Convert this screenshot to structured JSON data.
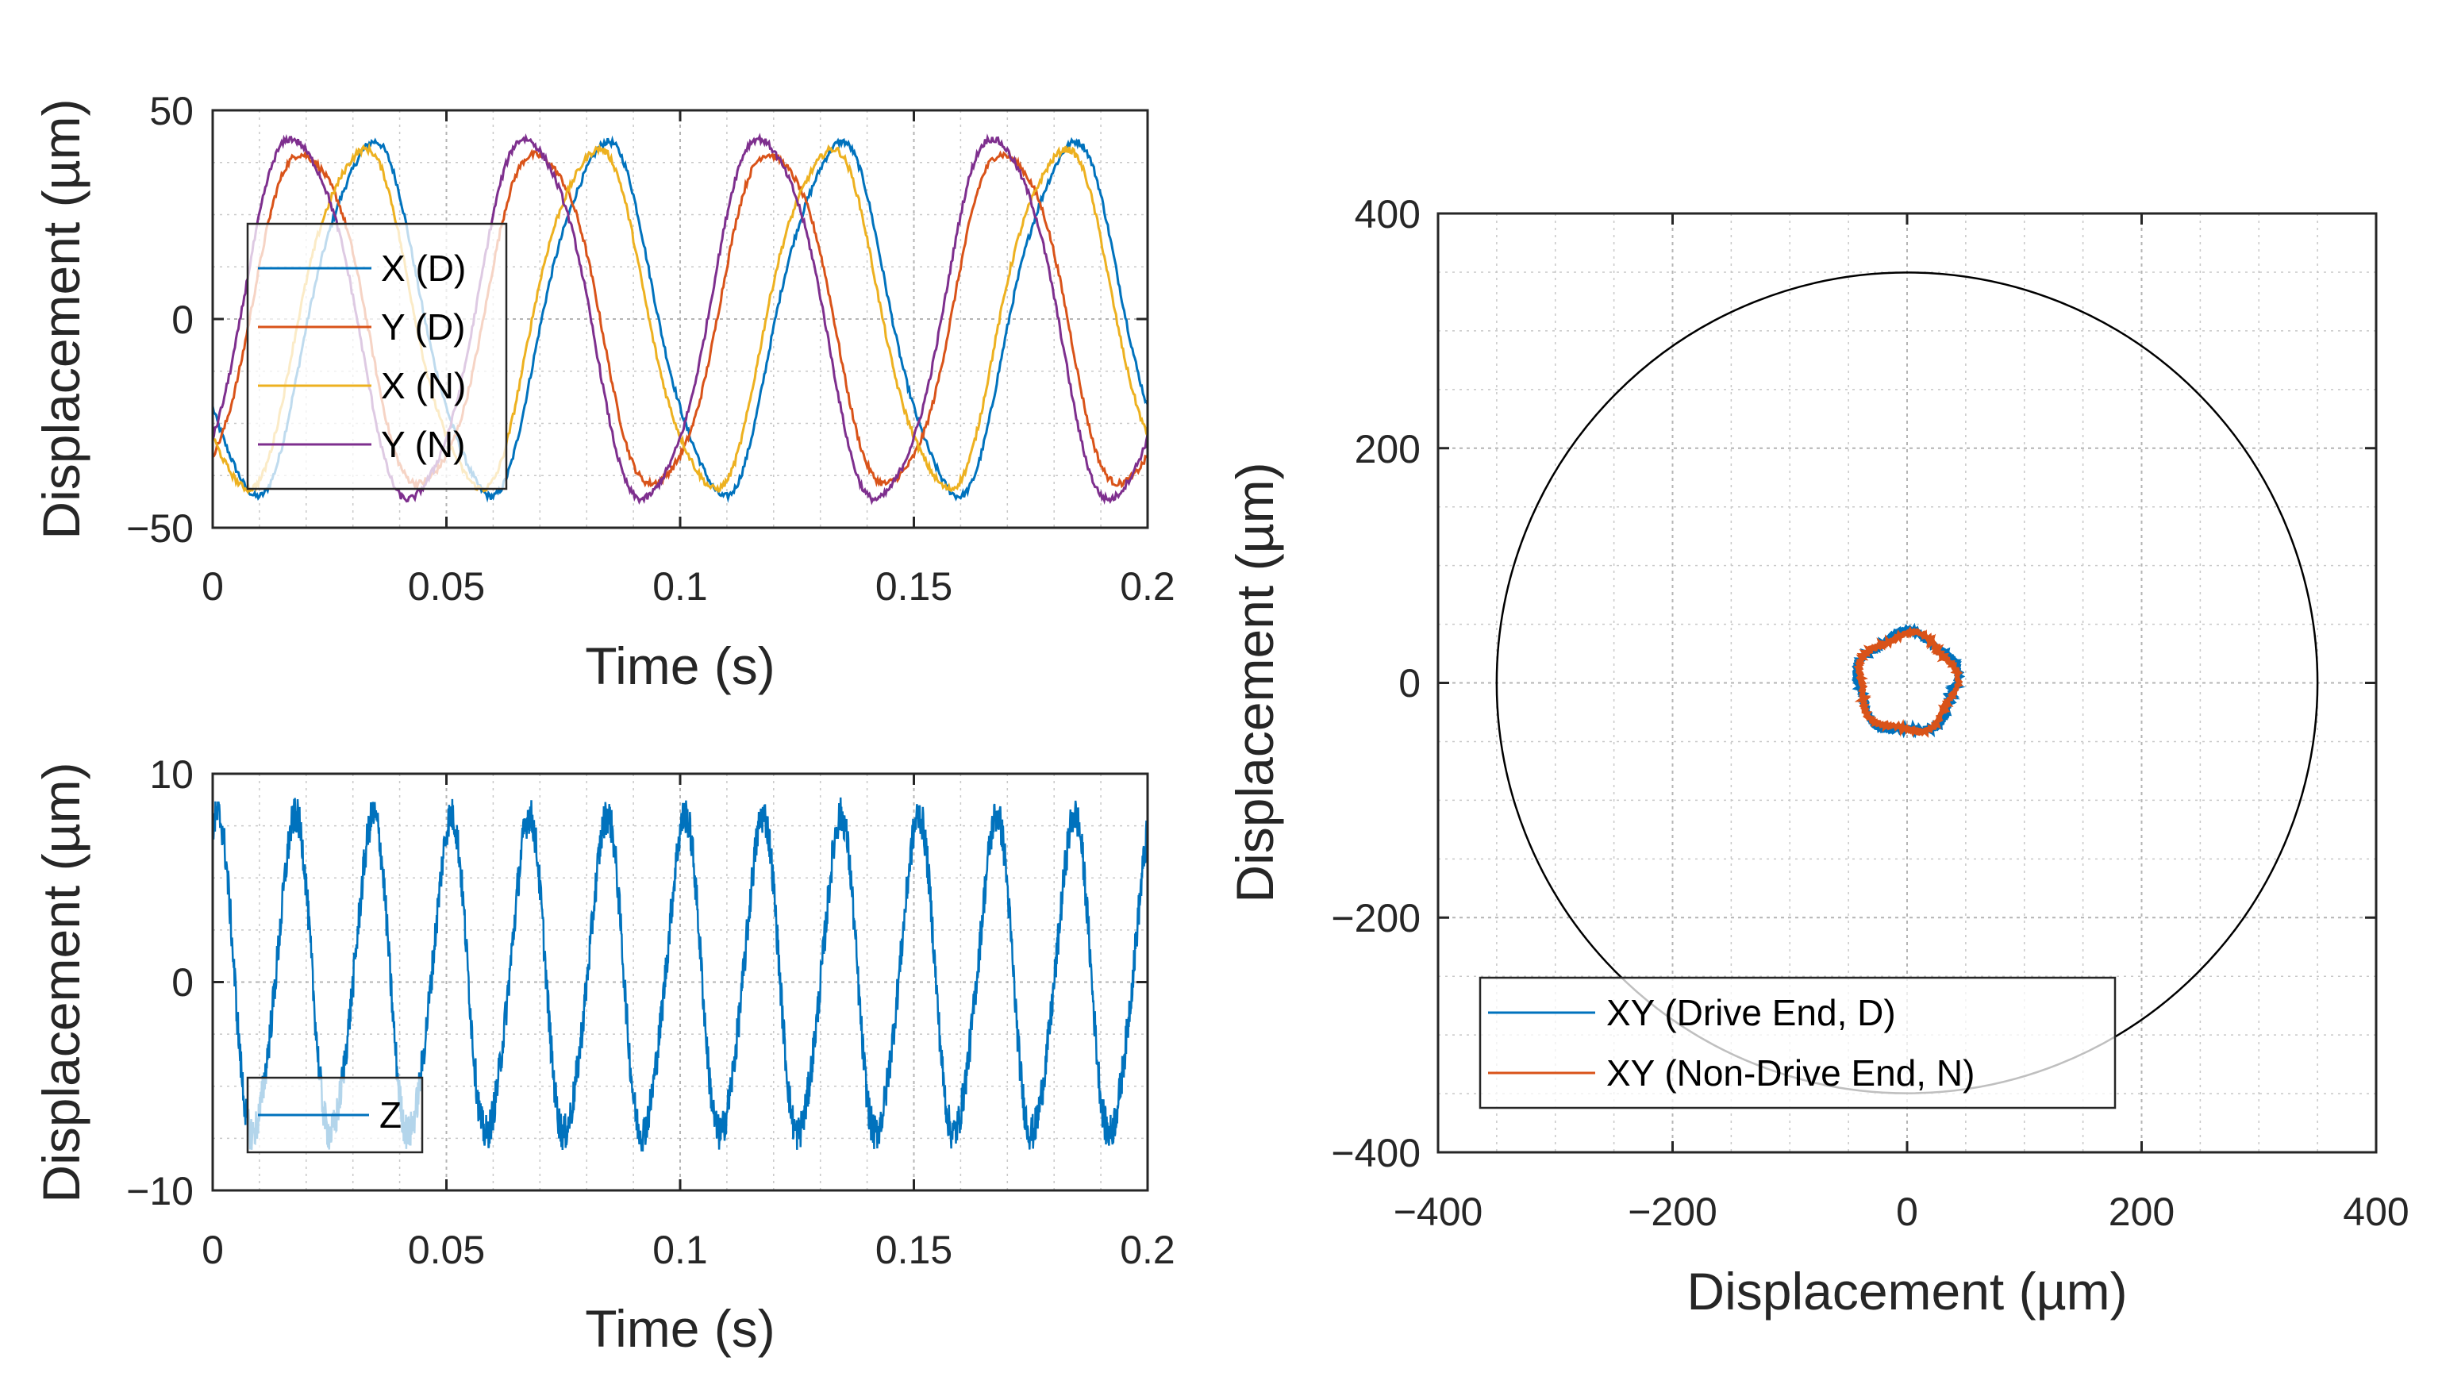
{
  "colors": {
    "x_d": "#0072BD",
    "y_d": "#D95319",
    "x_n": "#EDB120",
    "y_n": "#7E2F8E",
    "z": "#0072BD",
    "boundary": "#000000",
    "grid": "#c8c8c8",
    "axis": "#262626"
  },
  "chart_data": [
    {
      "id": "xy-time",
      "type": "line",
      "xlabel": "Time (s)",
      "ylabel": "Displacement (µm)",
      "xlim": [
        0,
        0.2
      ],
      "ylim": [
        -50,
        50
      ],
      "xticks": [
        0,
        0.05,
        0.1,
        0.15,
        0.2
      ],
      "xtick_labels": [
        "0",
        "0.05",
        "0.1",
        "0.15",
        "0.2"
      ],
      "yticks": [
        -50,
        0,
        50
      ],
      "ytick_labels": [
        "−50",
        "0",
        "50"
      ],
      "legend_location": "west",
      "series": [
        {
          "name": "X (D)",
          "color": "#0072BD",
          "amplitude": 42,
          "frequency_hz": 20,
          "phase_deg": 210
        },
        {
          "name": "Y (D)",
          "color": "#D95319",
          "amplitude": 41,
          "frequency_hz": 20,
          "phase_deg": 305
        },
        {
          "name": "X (N)",
          "color": "#EDB120",
          "amplitude": 41,
          "frequency_hz": 20,
          "phase_deg": 225
        },
        {
          "name": "Y (N)",
          "color": "#7E2F8E",
          "amplitude": 44,
          "frequency_hz": 20,
          "phase_deg": 320
        }
      ]
    },
    {
      "id": "z-time",
      "type": "line",
      "xlabel": "Time (s)",
      "ylabel": "Displacement (µm)",
      "xlim": [
        0,
        0.2
      ],
      "ylim": [
        -10,
        10
      ],
      "xticks": [
        0,
        0.05,
        0.1,
        0.15,
        0.2
      ],
      "xtick_labels": [
        "0",
        "0.05",
        "0.1",
        "0.15",
        "0.2"
      ],
      "yticks": [
        -10,
        0,
        10
      ],
      "ytick_labels": [
        "−10",
        "0",
        "10"
      ],
      "legend_location": "southwest",
      "series": [
        {
          "name": "Z",
          "color": "#0072BD",
          "amplitude": 7.5,
          "frequency_hz": 60,
          "phase_deg": 75,
          "noise": 0.9
        }
      ]
    },
    {
      "id": "orbit",
      "type": "line",
      "xlabel": "Displacement (µm)",
      "ylabel": "Displacement (µm)",
      "xlim": [
        -400,
        400
      ],
      "ylim": [
        -400,
        400
      ],
      "xticks": [
        -400,
        -200,
        0,
        200,
        400
      ],
      "xtick_labels": [
        "−400",
        "−200",
        "0",
        "200",
        "400"
      ],
      "yticks": [
        -400,
        -200,
        0,
        200,
        400
      ],
      "ytick_labels": [
        "−400",
        "−200",
        "0",
        "200",
        "400"
      ],
      "boundary_circle_radius": 350,
      "legend_location": "southwest",
      "series": [
        {
          "name": "XY (Drive End, D)",
          "color": "#0072BD",
          "radius": 42
        },
        {
          "name": "XY (Non-Drive End, N)",
          "color": "#D95319",
          "radius": 41
        }
      ]
    }
  ]
}
